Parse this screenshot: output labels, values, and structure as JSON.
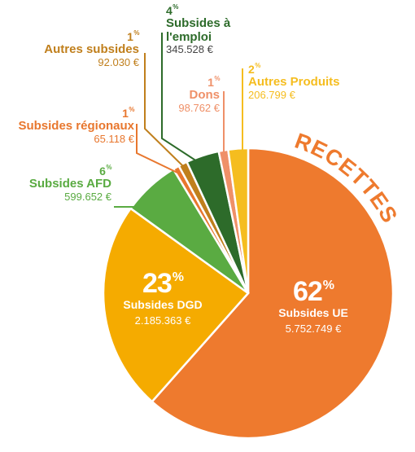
{
  "chart_data": {
    "type": "pie",
    "title": "RECETTES",
    "currency": "€",
    "slices": [
      {
        "name": "Subsides UE",
        "percent": "62",
        "amount": "5.752.749 €",
        "value": 5752749,
        "color": "#ee7a2e"
      },
      {
        "name": "Subsides DGD",
        "percent": "23",
        "amount": "2.185.363 €",
        "value": 2185363,
        "color": "#f5ab00"
      },
      {
        "name": "Subsides AFD",
        "percent": "6",
        "amount": "599.652 €",
        "value": 599652,
        "color": "#5aab42"
      },
      {
        "name": "Subsides régionaux",
        "percent": "1",
        "amount": "65.118 €",
        "value": 65118,
        "color": "#e8772e"
      },
      {
        "name": "Autres subsides",
        "percent": "1",
        "amount": "92.030 €",
        "value": 92030,
        "color": "#c07f1c"
      },
      {
        "name": "Subsides à l'emploi",
        "percent": "4",
        "amount": "345.528 €",
        "value": 345528,
        "color": "#2d6b2a"
      },
      {
        "name": "Dons",
        "percent": "1",
        "amount": "98.762 €",
        "value": 98762,
        "color": "#ef9068"
      },
      {
        "name": "Autres Produits",
        "percent": "2",
        "amount": "206.799 €",
        "value": 206799,
        "color": "#f5bd1f"
      }
    ],
    "pct_symbol": "%"
  },
  "labels": {
    "subsides_emploi_line1": "Subsides à",
    "subsides_emploi_line2": "l'emploi"
  }
}
